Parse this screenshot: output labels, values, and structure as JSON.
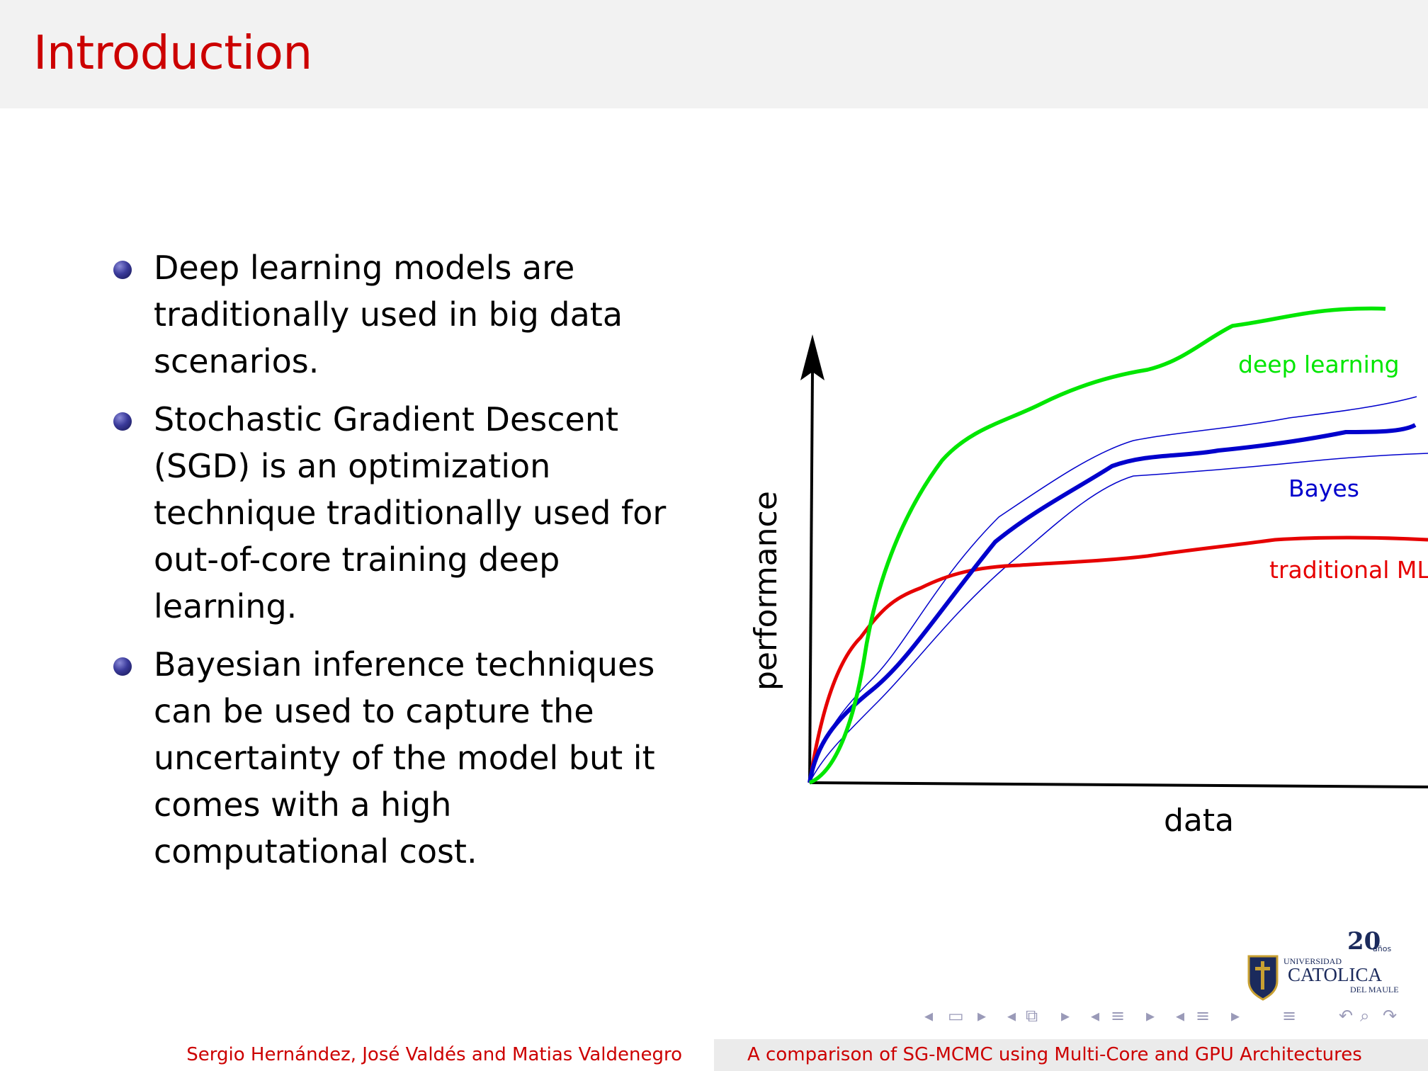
{
  "slide": {
    "title": "Introduction",
    "bullets": [
      "Deep learning models are traditionally used in big data scenarios.",
      "Stochastic Gradient Descent (SGD) is an optimization technique traditionally used for out-of-core training deep learning.",
      "Bayesian inference techniques can be used to capture the uncertainty of the model but it comes with a high computational cost."
    ]
  },
  "figure": {
    "y_axis_label": "performance",
    "x_axis_label": "data",
    "curves": [
      {
        "label": "deep learning",
        "color": "#00e600"
      },
      {
        "label": "Bayes",
        "color": "#0000cc"
      },
      {
        "label": "traditional ML",
        "color": "#e60000"
      }
    ]
  },
  "footer": {
    "authors": "Sergio Hernández, José Valdés and Matias Valdenegro",
    "talk_title": "A comparison of SG-MCMC using Multi-Core and GPU Architectures"
  },
  "logo": {
    "line1": "UNIVERSIDAD",
    "line2": "CATOLICA",
    "line3": "DEL MAULE",
    "anniversary_number": "20",
    "anniversary_word": "años"
  },
  "navigation": {
    "icons": [
      "nav-prev-frame-icon",
      "nav-frame-icon",
      "nav-next-frame-icon",
      "nav-prev-subsection-icon",
      "nav-subsection-icon",
      "nav-next-subsection-icon",
      "nav-prev-section-icon",
      "nav-section-icon",
      "nav-next-section-icon",
      "nav-align-icon",
      "nav-back-icon",
      "nav-search-icon",
      "nav-forward-icon"
    ]
  }
}
